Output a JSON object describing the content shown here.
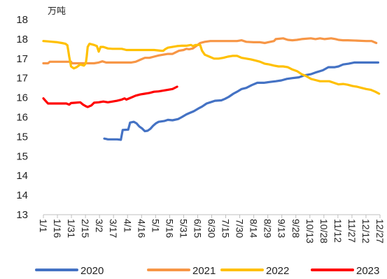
{
  "chart_data": {
    "type": "line",
    "unit_label": "万吨",
    "y_tick_labels": [
      "13",
      "14",
      "14",
      "15",
      "15",
      "16",
      "16",
      "17",
      "17",
      "18",
      "18"
    ],
    "ylim": [
      13,
      18
    ],
    "x_tick_labels": [
      "1/1",
      "1/16",
      "1/31",
      "2/15",
      "3/2",
      "3/17",
      "4/1",
      "4/16",
      "5/1",
      "5/16",
      "5/31",
      "6/15",
      "6/30",
      "7/15",
      "7/30",
      "8/14",
      "8/29",
      "9/13",
      "9/28",
      "10/13",
      "10/28",
      "11/12",
      "11/27",
      "12/12",
      "12/27"
    ],
    "x_domain_days": [
      0,
      365
    ],
    "grid": false,
    "legend_position": "bottom",
    "series": [
      {
        "name": "2020",
        "color": "#4472C4",
        "points": [
          [
            66,
            14.95
          ],
          [
            68,
            14.94
          ],
          [
            70,
            14.93
          ],
          [
            75,
            14.93
          ],
          [
            80,
            14.93
          ],
          [
            84,
            14.92
          ],
          [
            86,
            15.17
          ],
          [
            92,
            15.18
          ],
          [
            94,
            15.36
          ],
          [
            98,
            15.38
          ],
          [
            101,
            15.34
          ],
          [
            104,
            15.26
          ],
          [
            107,
            15.21
          ],
          [
            110,
            15.14
          ],
          [
            113,
            15.15
          ],
          [
            116,
            15.2
          ],
          [
            119,
            15.28
          ],
          [
            122,
            15.34
          ],
          [
            125,
            15.38
          ],
          [
            131,
            15.4
          ],
          [
            135,
            15.43
          ],
          [
            140,
            15.42
          ],
          [
            146,
            15.45
          ],
          [
            150,
            15.5
          ],
          [
            155,
            15.57
          ],
          [
            158,
            15.6
          ],
          [
            163,
            15.65
          ],
          [
            168,
            15.72
          ],
          [
            172,
            15.77
          ],
          [
            177,
            15.85
          ],
          [
            181,
            15.88
          ],
          [
            186,
            15.92
          ],
          [
            193,
            15.93
          ],
          [
            197,
            15.97
          ],
          [
            201,
            16.02
          ],
          [
            206,
            16.1
          ],
          [
            210,
            16.15
          ],
          [
            215,
            16.22
          ],
          [
            220,
            16.25
          ],
          [
            226,
            16.32
          ],
          [
            232,
            16.38
          ],
          [
            239,
            16.38
          ],
          [
            245,
            16.4
          ],
          [
            252,
            16.42
          ],
          [
            258,
            16.44
          ],
          [
            264,
            16.48
          ],
          [
            270,
            16.5
          ],
          [
            277,
            16.52
          ],
          [
            283,
            16.57
          ],
          [
            290,
            16.6
          ],
          [
            296,
            16.65
          ],
          [
            303,
            16.7
          ],
          [
            309,
            16.78
          ],
          [
            316,
            16.78
          ],
          [
            320,
            16.8
          ],
          [
            325,
            16.85
          ],
          [
            331,
            16.87
          ],
          [
            337,
            16.9
          ],
          [
            343,
            16.9
          ],
          [
            350,
            16.9
          ],
          [
            357,
            16.9
          ],
          [
            363,
            16.9
          ]
        ]
      },
      {
        "name": "2021",
        "color": "#F79646",
        "points": [
          [
            0,
            16.88
          ],
          [
            5,
            16.88
          ],
          [
            7,
            16.92
          ],
          [
            15,
            16.92
          ],
          [
            20,
            16.92
          ],
          [
            25,
            16.92
          ],
          [
            30,
            16.92
          ],
          [
            31,
            16.88
          ],
          [
            40,
            16.88
          ],
          [
            45,
            16.88
          ],
          [
            50,
            16.88
          ],
          [
            55,
            16.88
          ],
          [
            60,
            16.9
          ],
          [
            64,
            16.93
          ],
          [
            68,
            16.9
          ],
          [
            75,
            16.9
          ],
          [
            82,
            16.9
          ],
          [
            90,
            16.9
          ],
          [
            95,
            16.9
          ],
          [
            100,
            16.92
          ],
          [
            103,
            16.95
          ],
          [
            106,
            16.98
          ],
          [
            110,
            17.02
          ],
          [
            115,
            17.02
          ],
          [
            120,
            17.05
          ],
          [
            125,
            17.08
          ],
          [
            130,
            17.1
          ],
          [
            135,
            17.12
          ],
          [
            140,
            17.12
          ],
          [
            147,
            17.2
          ],
          [
            152,
            17.22
          ],
          [
            155,
            17.25
          ],
          [
            158,
            17.24
          ],
          [
            162,
            17.26
          ],
          [
            166,
            17.33
          ],
          [
            170,
            17.4
          ],
          [
            175,
            17.43
          ],
          [
            181,
            17.45
          ],
          [
            190,
            17.45
          ],
          [
            200,
            17.45
          ],
          [
            210,
            17.45
          ],
          [
            215,
            17.47
          ],
          [
            220,
            17.43
          ],
          [
            228,
            17.42
          ],
          [
            235,
            17.42
          ],
          [
            240,
            17.4
          ],
          [
            246,
            17.43
          ],
          [
            250,
            17.45
          ],
          [
            252,
            17.5
          ],
          [
            260,
            17.52
          ],
          [
            265,
            17.48
          ],
          [
            270,
            17.47
          ],
          [
            275,
            17.48
          ],
          [
            280,
            17.5
          ],
          [
            290,
            17.52
          ],
          [
            295,
            17.5
          ],
          [
            300,
            17.52
          ],
          [
            305,
            17.5
          ],
          [
            312,
            17.52
          ],
          [
            317,
            17.5
          ],
          [
            320,
            17.48
          ],
          [
            325,
            17.47
          ],
          [
            330,
            17.47
          ],
          [
            340,
            17.46
          ],
          [
            350,
            17.45
          ],
          [
            356,
            17.45
          ],
          [
            361,
            17.4
          ]
        ]
      },
      {
        "name": "2022",
        "color": "#FFC000",
        "points": [
          [
            0,
            17.45
          ],
          [
            5,
            17.44
          ],
          [
            10,
            17.43
          ],
          [
            15,
            17.42
          ],
          [
            20,
            17.4
          ],
          [
            24,
            17.38
          ],
          [
            26,
            17.34
          ],
          [
            27,
            17.2
          ],
          [
            28,
            17.05
          ],
          [
            30,
            16.8
          ],
          [
            33,
            16.75
          ],
          [
            36,
            16.78
          ],
          [
            40,
            16.85
          ],
          [
            44,
            16.82
          ],
          [
            46,
            16.88
          ],
          [
            47,
            17.05
          ],
          [
            48,
            17.3
          ],
          [
            50,
            17.38
          ],
          [
            55,
            17.35
          ],
          [
            58,
            17.32
          ],
          [
            60,
            17.18
          ],
          [
            62,
            17.3
          ],
          [
            65,
            17.3
          ],
          [
            70,
            17.26
          ],
          [
            75,
            17.25
          ],
          [
            80,
            17.25
          ],
          [
            85,
            17.25
          ],
          [
            90,
            17.22
          ],
          [
            95,
            17.22
          ],
          [
            100,
            17.22
          ],
          [
            110,
            17.22
          ],
          [
            120,
            17.22
          ],
          [
            128,
            17.2
          ],
          [
            130,
            17.2
          ],
          [
            132,
            17.24
          ],
          [
            135,
            17.28
          ],
          [
            140,
            17.3
          ],
          [
            145,
            17.32
          ],
          [
            150,
            17.33
          ],
          [
            155,
            17.33
          ],
          [
            160,
            17.35
          ],
          [
            162,
            17.32
          ],
          [
            165,
            17.35
          ],
          [
            170,
            17.35
          ],
          [
            172,
            17.2
          ],
          [
            175,
            17.1
          ],
          [
            180,
            17.05
          ],
          [
            185,
            17.0
          ],
          [
            190,
            17.0
          ],
          [
            195,
            17.02
          ],
          [
            200,
            17.05
          ],
          [
            205,
            17.07
          ],
          [
            210,
            17.07
          ],
          [
            215,
            17.02
          ],
          [
            220,
            17.0
          ],
          [
            225,
            16.98
          ],
          [
            230,
            16.95
          ],
          [
            235,
            16.92
          ],
          [
            240,
            16.87
          ],
          [
            245,
            16.85
          ],
          [
            250,
            16.82
          ],
          [
            255,
            16.8
          ],
          [
            260,
            16.8
          ],
          [
            265,
            16.78
          ],
          [
            270,
            16.72
          ],
          [
            275,
            16.68
          ],
          [
            280,
            16.6
          ],
          [
            285,
            16.55
          ],
          [
            290,
            16.48
          ],
          [
            295,
            16.45
          ],
          [
            300,
            16.42
          ],
          [
            310,
            16.42
          ],
          [
            315,
            16.38
          ],
          [
            320,
            16.34
          ],
          [
            325,
            16.35
          ],
          [
            330,
            16.33
          ],
          [
            335,
            16.3
          ],
          [
            340,
            16.28
          ],
          [
            345,
            16.25
          ],
          [
            350,
            16.22
          ],
          [
            355,
            16.2
          ],
          [
            360,
            16.15
          ],
          [
            364,
            16.1
          ]
        ]
      },
      {
        "name": "2023",
        "color": "#FF0000",
        "points": [
          [
            0,
            15.98
          ],
          [
            3,
            15.9
          ],
          [
            5,
            15.85
          ],
          [
            10,
            15.85
          ],
          [
            15,
            15.85
          ],
          [
            20,
            15.85
          ],
          [
            25,
            15.85
          ],
          [
            28,
            15.82
          ],
          [
            30,
            15.86
          ],
          [
            35,
            15.87
          ],
          [
            40,
            15.88
          ],
          [
            43,
            15.82
          ],
          [
            46,
            15.78
          ],
          [
            48,
            15.76
          ],
          [
            52,
            15.8
          ],
          [
            55,
            15.87
          ],
          [
            60,
            15.88
          ],
          [
            65,
            15.9
          ],
          [
            70,
            15.88
          ],
          [
            75,
            15.9
          ],
          [
            80,
            15.92
          ],
          [
            85,
            15.95
          ],
          [
            88,
            15.98
          ],
          [
            90,
            15.95
          ],
          [
            95,
            16.0
          ],
          [
            100,
            16.05
          ],
          [
            105,
            16.08
          ],
          [
            110,
            16.1
          ],
          [
            115,
            16.12
          ],
          [
            120,
            16.15
          ],
          [
            125,
            16.16
          ],
          [
            130,
            16.18
          ],
          [
            135,
            16.2
          ],
          [
            140,
            16.22
          ],
          [
            145,
            16.28
          ]
        ]
      }
    ]
  }
}
